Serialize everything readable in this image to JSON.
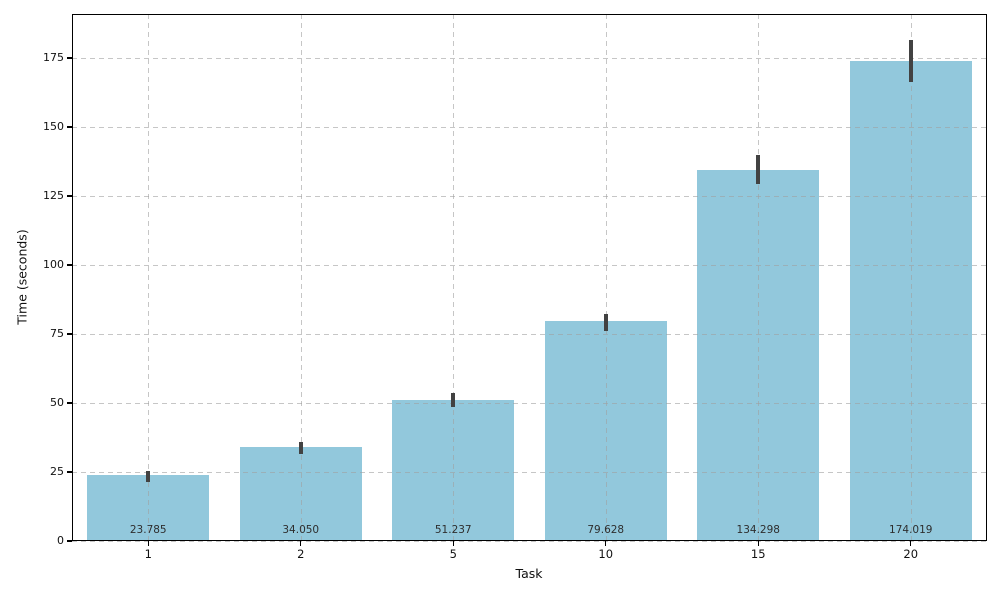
{
  "chart_data": {
    "type": "bar",
    "title": "",
    "xlabel": "Task",
    "ylabel": "Time (seconds)",
    "categories": [
      "1",
      "2",
      "5",
      "10",
      "15",
      "20"
    ],
    "values": [
      23.785,
      34.05,
      51.237,
      79.628,
      134.298,
      174.019
    ],
    "value_labels": [
      "23.785",
      "34.050",
      "51.237",
      "79.628",
      "134.298",
      "174.019"
    ],
    "error_low": [
      21.3,
      31.5,
      48.5,
      76.1,
      129.3,
      166.3
    ],
    "error_high": [
      25.2,
      36.0,
      53.6,
      82.2,
      139.9,
      181.5
    ],
    "yticks": [
      0,
      25,
      50,
      75,
      100,
      125,
      150,
      175
    ],
    "ylim": [
      0,
      191
    ],
    "grid": true,
    "grid_style": "dashed",
    "legend": false,
    "bar_color": "#92C8DC",
    "error_bar_color": "#424242",
    "value_label_color": "#2e2e2e",
    "axis_color": "#000000"
  }
}
